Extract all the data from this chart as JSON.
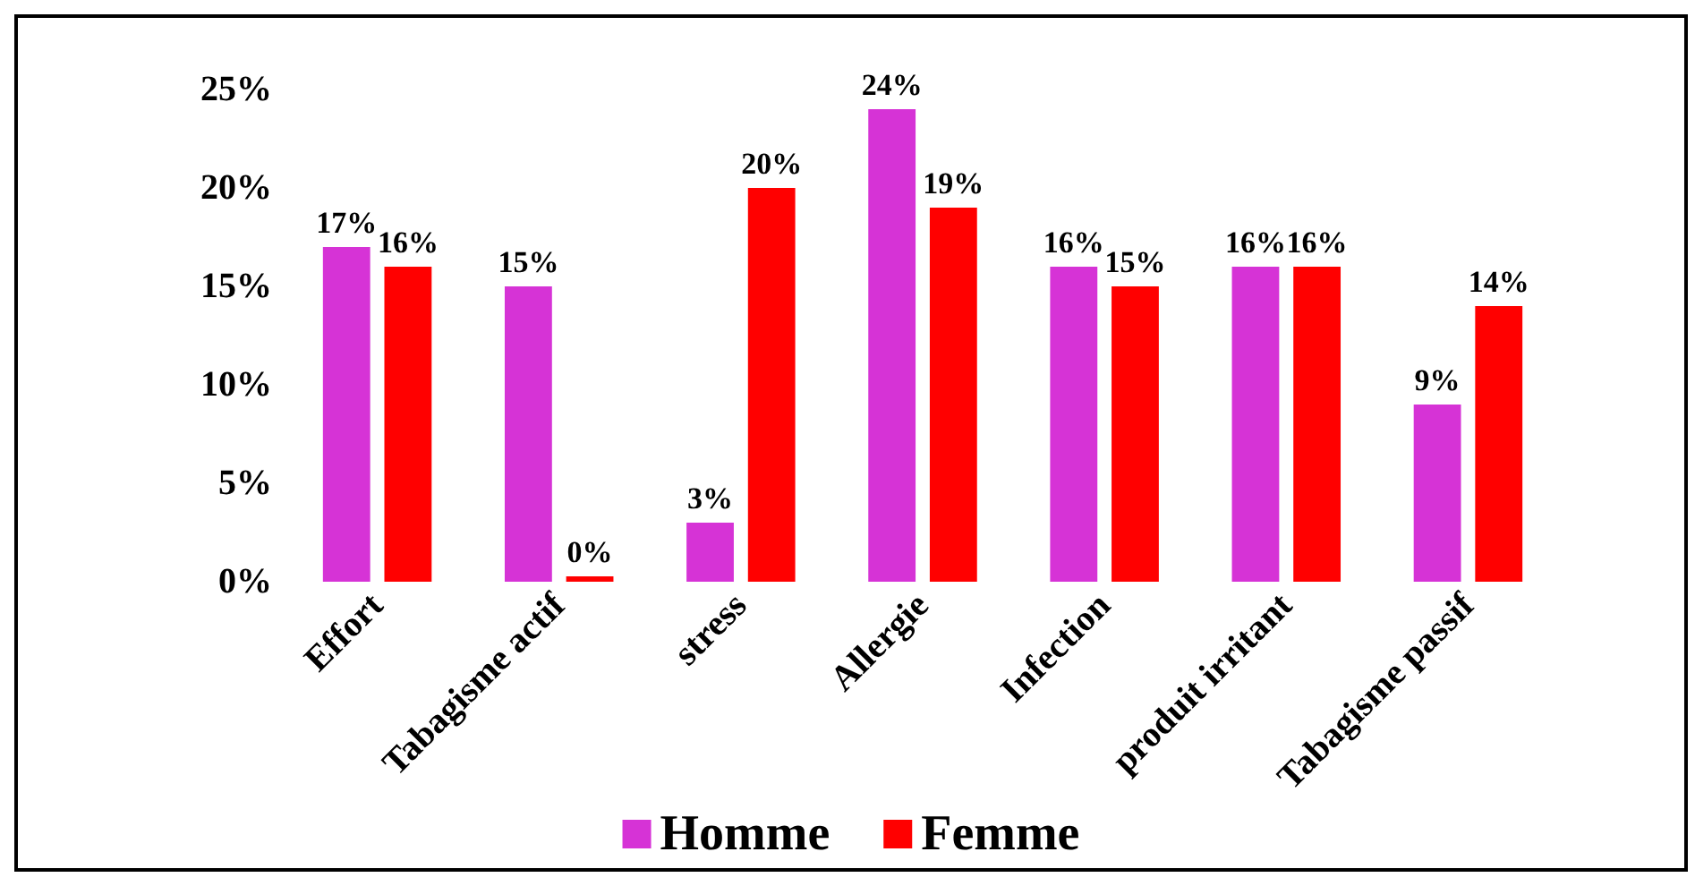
{
  "chart_data": {
    "type": "bar",
    "categories": [
      "Effort",
      "Tabagisme actif",
      "stress",
      "Allergie",
      "Infection",
      "produit irritant",
      "Tabagisme passif"
    ],
    "series": [
      {
        "name": "Homme",
        "color": "#d633d6",
        "values": [
          17,
          15,
          3,
          24,
          16,
          16,
          9
        ],
        "value_labels": [
          "17%",
          "15%",
          "3%",
          "24%",
          "16%",
          "16%",
          "9%"
        ]
      },
      {
        "name": "Femme",
        "color": "#ff0000",
        "values": [
          16,
          0,
          20,
          19,
          15,
          16,
          14
        ],
        "value_labels": [
          "16%",
          "0%",
          "20%",
          "19%",
          "15%",
          "16%",
          "14%"
        ]
      }
    ],
    "ylim": [
      0,
      25
    ],
    "yticks": [
      {
        "value": 0,
        "label": "0%"
      },
      {
        "value": 5,
        "label": "5%"
      },
      {
        "value": 10,
        "label": "10%"
      },
      {
        "value": 15,
        "label": "15%"
      },
      {
        "value": 20,
        "label": "20%"
      },
      {
        "value": 25,
        "label": "25%"
      }
    ],
    "grid": false,
    "legend": "bottom"
  }
}
